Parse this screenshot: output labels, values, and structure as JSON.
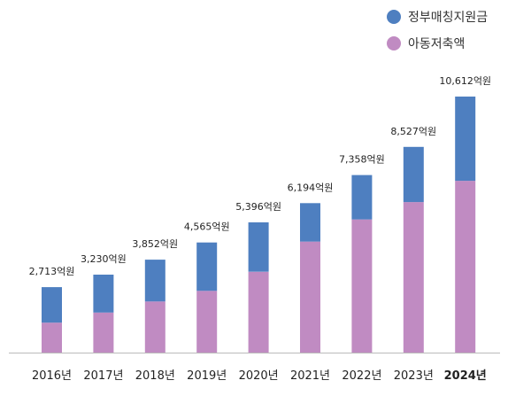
{
  "chart_data": {
    "type": "bar",
    "stacked": true,
    "categories": [
      "2016년",
      "2017년",
      "2018년",
      "2019년",
      "2020년",
      "2021년",
      "2022년",
      "2023년",
      "2024년"
    ],
    "totals_labels": [
      "2,713억원",
      "3,230억원",
      "3,852억원",
      "4,565억원",
      "5,396억원",
      "6,194억원",
      "7,358억원",
      "8,527억원",
      "10,612억원"
    ],
    "totals": [
      2713,
      3230,
      3852,
      4565,
      5396,
      6194,
      7358,
      8527,
      10612
    ],
    "series": [
      {
        "name": "아동저축액",
        "color": "#c08bc2",
        "values": [
          1240,
          1660,
          2120,
          2560,
          3350,
          4600,
          5520,
          6240,
          7120
        ]
      },
      {
        "name": "정부매칭지원금",
        "color": "#4e7fc0",
        "values": [
          1473,
          1570,
          1732,
          2005,
          2046,
          1594,
          1838,
          2287,
          3492
        ]
      }
    ],
    "ylim": [
      0,
      10612
    ],
    "grid": false,
    "legend": "top-right",
    "legend_order": [
      "정부매칭지원금",
      "아동저축액"
    ]
  }
}
